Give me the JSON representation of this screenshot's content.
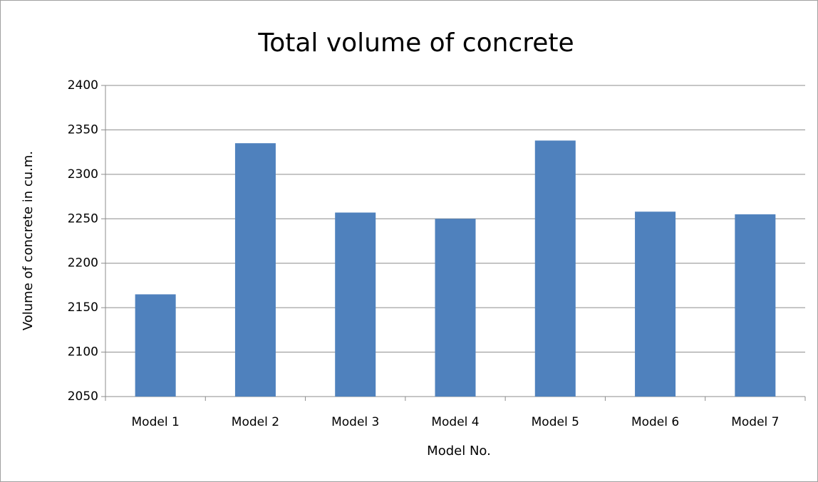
{
  "chart_data": {
    "type": "bar",
    "title": "Total volume of concrete",
    "x_label": "Model No.",
    "y_label": "Volume of concrete in cu.m.",
    "categories": [
      "Model 1",
      "Model 2",
      "Model 3",
      "Model 4",
      "Model 5",
      "Model 6",
      "Model 7"
    ],
    "values": [
      2165,
      2335,
      2257,
      2250,
      2338,
      2258,
      2255
    ],
    "color": "#4f81bd",
    "ylim": [
      2050,
      2400
    ],
    "yticks": [
      2050,
      2100,
      2150,
      2200,
      2250,
      2300,
      2350,
      2400
    ],
    "grid": true
  }
}
